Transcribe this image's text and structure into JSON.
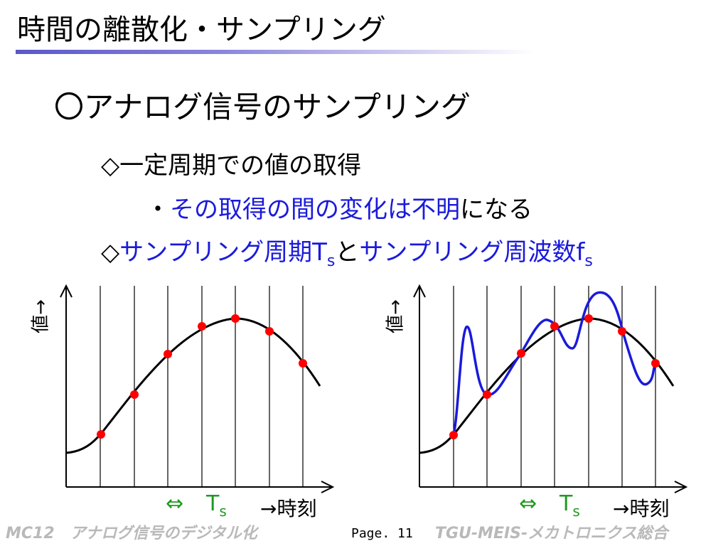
{
  "slide": {
    "title": "時間の離散化・サンプリング",
    "heading": "〇アナログ信号のサンプリング",
    "bullet1": "◇一定周期での値の取得",
    "bullet2_prefix": "・",
    "bullet2_blue": "その取得の間の変化は不明",
    "bullet2_suffix": "になる",
    "bullet3_prefix": "◇",
    "bullet3_blue1": "サンプリング周期T",
    "bullet3_sub1": "s",
    "bullet3_middle": "と",
    "bullet3_blue2": "サンプリング周波数f",
    "bullet3_sub2": "s"
  },
  "colors": {
    "accent_blue": "#1a1adc",
    "sample_red": "#ff0000",
    "period_green": "#1f9a1f",
    "footer_gray": "#b9b9b9"
  },
  "plots": {
    "ylabel": "値→",
    "xlabel": "→時刻",
    "period_label": "T",
    "period_sub": "s",
    "period_arrow": "⇔"
  },
  "footer": {
    "left": "MC12　アナログ信号のデジタル化",
    "page": "Page. 11",
    "right": "TGU-MEIS-メカトロニクス総合"
  }
}
